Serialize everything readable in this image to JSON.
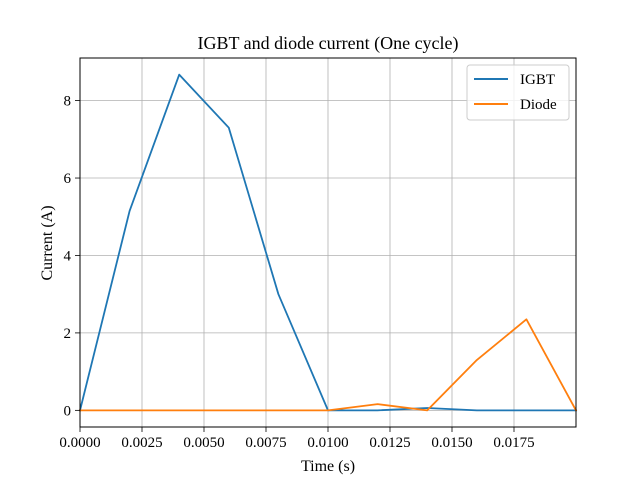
{
  "chart_data": {
    "type": "line",
    "title": "IGBT and diode current (One cycle)",
    "xlabel": "Time (s)",
    "ylabel": "Current (A)",
    "xlim": [
      0.0,
      0.02
    ],
    "ylim": [
      -0.43,
      9.1
    ],
    "x": [
      0.0,
      0.002,
      0.004,
      0.006,
      0.008,
      0.01,
      0.012,
      0.014,
      0.016,
      0.018,
      0.02
    ],
    "series": [
      {
        "name": "IGBT",
        "color": "#1f77b4",
        "values": [
          0.0,
          5.15,
          8.67,
          7.3,
          3.0,
          0.0,
          0.0,
          0.06,
          0.0,
          0.0,
          0.0
        ]
      },
      {
        "name": "Diode",
        "color": "#ff7f0e",
        "values": [
          0.0,
          0.0,
          0.0,
          0.0,
          0.0,
          0.0,
          0.16,
          0.0,
          1.3,
          2.35,
          0.0
        ]
      }
    ],
    "xticks": [
      0.0,
      0.0025,
      0.005,
      0.0075,
      0.01,
      0.0125,
      0.015,
      0.0175
    ],
    "xtick_labels": [
      "0.0000",
      "0.0025",
      "0.0050",
      "0.0075",
      "0.0100",
      "0.0125",
      "0.0150",
      "0.0175"
    ],
    "yticks": [
      0,
      2,
      4,
      6,
      8
    ],
    "ytick_labels": [
      "0",
      "2",
      "4",
      "6",
      "8"
    ],
    "grid": true,
    "legend_position": "top-right"
  }
}
